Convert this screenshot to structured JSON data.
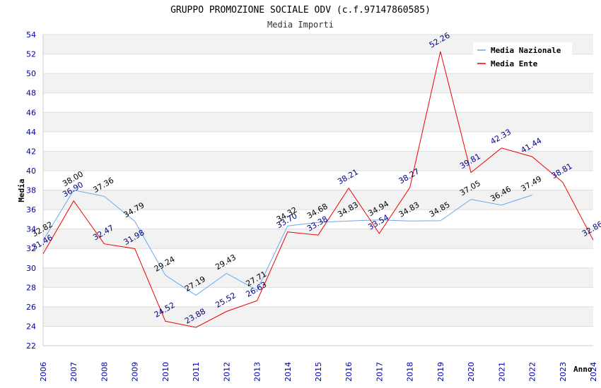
{
  "chart_data": {
    "type": "line",
    "title": "GRUPPO PROMOZIONE SOCIALE ODV (c.f.97147860585)",
    "subtitle": "Media Importi",
    "xlabel": "Anno",
    "ylabel": "Media",
    "ylim": [
      22,
      54
    ],
    "ytick_step": 2,
    "legend_position": "top-right",
    "categories": [
      "2006",
      "2007",
      "2008",
      "2009",
      "2010",
      "2011",
      "2012",
      "2013",
      "2014",
      "2015",
      "2016",
      "2017",
      "2018",
      "2019",
      "2020",
      "2021",
      "2022",
      "2023",
      "2024"
    ],
    "series": [
      {
        "name": "Media Nazionale",
        "color": "#66aaee",
        "label_color": "#000000",
        "values": [
          32.82,
          38.0,
          37.36,
          34.79,
          29.24,
          27.19,
          29.43,
          27.71,
          34.32,
          34.68,
          34.83,
          34.94,
          34.83,
          34.85,
          37.05,
          36.46,
          37.49,
          null,
          null
        ]
      },
      {
        "name": "Media Ente",
        "color": "#ee0000",
        "label_color": "#000080",
        "values": [
          31.46,
          36.9,
          32.47,
          31.98,
          24.52,
          23.88,
          25.52,
          26.63,
          33.7,
          33.38,
          38.21,
          33.54,
          38.27,
          52.26,
          39.81,
          42.33,
          41.44,
          38.81,
          32.86
        ]
      }
    ]
  }
}
